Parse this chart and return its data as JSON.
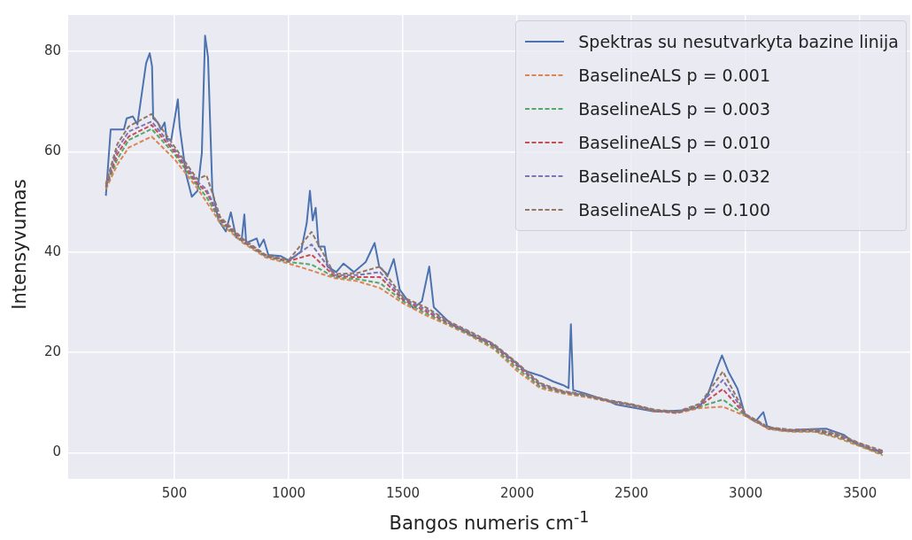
{
  "chart_data": {
    "type": "line",
    "xlabel": "Bangos numeris cm$^{-1}$",
    "ylabel": "Intensyvumas",
    "xlim": [
      35,
      3720
    ],
    "ylim": [
      -5.2,
      87.2
    ],
    "xticks": [
      500,
      1000,
      1500,
      2000,
      2500,
      3000,
      3500
    ],
    "yticks": [
      0,
      20,
      40,
      60,
      80
    ],
    "grid": true,
    "legend": "top right",
    "marker": "none",
    "series": [
      {
        "name": "Spektras su nesutvarkyta bazine linija",
        "color": "#4c72b0",
        "line_style": "solid",
        "x": [
          200,
          221,
          279,
          291,
          318,
          338,
          376,
          392,
          402,
          407,
          427,
          441,
          457,
          466,
          486,
          515,
          523,
          550,
          576,
          601,
          620,
          634,
          647,
          666,
          693,
          725,
          747,
          770,
          794,
          806,
          814,
          860,
          872,
          891,
          911,
          964,
          1002,
          1054,
          1079,
          1093,
          1105,
          1118,
          1131,
          1157,
          1170,
          1208,
          1240,
          1286,
          1337,
          1376,
          1396,
          1434,
          1460,
          1486,
          1545,
          1583,
          1615,
          1635,
          1712,
          1764,
          1816,
          1880,
          1945,
          1983,
          2035,
          2111,
          2158,
          2200,
          2225,
          2235,
          2245,
          2300,
          2400,
          2434,
          2603,
          2745,
          2797,
          2835,
          2874,
          2896,
          2926,
          2964,
          2997,
          3042,
          3077,
          3094,
          3158,
          3287,
          3352,
          3429,
          3481,
          3558,
          3600
        ],
        "values": [
          51.2,
          64.4,
          64.4,
          66.6,
          67,
          65.4,
          77.6,
          79.6,
          77,
          66.6,
          65.8,
          64.4,
          65.8,
          62.6,
          62.3,
          70.4,
          64.9,
          55.7,
          51,
          52.2,
          59.7,
          83.1,
          78.8,
          52.2,
          46.3,
          44.1,
          47.9,
          42.9,
          42.3,
          47.5,
          41.8,
          42.7,
          41,
          42.5,
          39.4,
          39.2,
          38.3,
          40.1,
          45.8,
          52.2,
          46.3,
          48.8,
          41.1,
          41.1,
          37.1,
          36,
          37.7,
          36,
          38,
          41.8,
          37.1,
          35.4,
          38.6,
          32.5,
          28.8,
          30.2,
          37.1,
          29,
          25.6,
          24.4,
          23,
          22.1,
          19.8,
          18.4,
          16.3,
          15.2,
          14.2,
          13.5,
          12.9,
          25.6,
          12.5,
          11.8,
          10.3,
          9.6,
          8.2,
          8.5,
          9.1,
          11.7,
          16.8,
          19.4,
          16,
          12.8,
          7.6,
          6.2,
          8.1,
          5.3,
          4.4,
          4.7,
          4.8,
          3.6,
          1.8,
          0.4,
          0.4
        ]
      },
      {
        "name": "BaselineALS p = 0.001",
        "color": "#dd8452",
        "line_style": "dashed",
        "x": [
          200,
          250,
          300,
          400,
          500,
          600,
          640,
          700,
          800,
          900,
          1000,
          1100,
          1200,
          1300,
          1400,
          1500,
          1600,
          1700,
          1800,
          1900,
          2000,
          2100,
          2200,
          2300,
          2400,
          2500,
          2600,
          2700,
          2800,
          2900,
          3000,
          3100,
          3200,
          3300,
          3400,
          3500,
          3600
        ],
        "values": [
          52.5,
          57.4,
          60.8,
          63,
          58.5,
          52.7,
          50,
          45.8,
          41.8,
          38.9,
          37.7,
          36.3,
          34.8,
          34.2,
          32.8,
          29.8,
          27.4,
          25.4,
          23.2,
          20.6,
          16.3,
          12.9,
          11.8,
          11.1,
          10.2,
          9.4,
          8.3,
          7.9,
          8.9,
          9.2,
          7.3,
          4.7,
          4.2,
          4.2,
          3,
          1.3,
          -0.5
        ]
      },
      {
        "name": "BaselineALS p = 0.003",
        "color": "#55a868",
        "line_style": "dashed",
        "x": [
          200,
          250,
          300,
          400,
          500,
          600,
          640,
          700,
          800,
          900,
          1000,
          1100,
          1200,
          1300,
          1400,
          1500,
          1600,
          1700,
          1800,
          1900,
          2000,
          2100,
          2200,
          2300,
          2400,
          2500,
          2600,
          2700,
          2800,
          2900,
          3000,
          3100,
          3200,
          3300,
          3400,
          3500,
          3600
        ],
        "values": [
          52.8,
          58.5,
          62.3,
          64.5,
          59.5,
          53.2,
          51,
          46.2,
          42,
          39.1,
          38,
          37.5,
          35,
          34.6,
          33.8,
          30.2,
          27.8,
          25.6,
          23.4,
          20.9,
          16.8,
          13.2,
          12,
          11.3,
          10.3,
          9.5,
          8.4,
          8,
          9.2,
          10.6,
          7.4,
          4.8,
          4.3,
          4.3,
          3.2,
          1.5,
          -0.3
        ]
      },
      {
        "name": "BaselineALS p = 0.010",
        "color": "#c44e52",
        "line_style": "dashed",
        "x": [
          200,
          250,
          300,
          400,
          500,
          600,
          640,
          700,
          800,
          900,
          1000,
          1100,
          1200,
          1300,
          1400,
          1500,
          1600,
          1700,
          1800,
          1900,
          2000,
          2100,
          2200,
          2300,
          2400,
          2500,
          2600,
          2700,
          2800,
          2900,
          3000,
          3100,
          3200,
          3300,
          3400,
          3500,
          3600
        ],
        "values": [
          53,
          59.5,
          63,
          65.3,
          60,
          53.6,
          52,
          46.5,
          42.2,
          39.2,
          38.2,
          39.5,
          35.2,
          35,
          35,
          30.5,
          28.2,
          25.8,
          23.6,
          21.2,
          17.3,
          13.5,
          12.1,
          11.4,
          10.3,
          9.5,
          8.4,
          8,
          9.4,
          12.7,
          7.5,
          4.9,
          4.4,
          4.5,
          3.5,
          1.7,
          -0.1
        ]
      },
      {
        "name": "BaselineALS p = 0.032",
        "color": "#8172b3",
        "line_style": "dashed",
        "x": [
          200,
          250,
          300,
          400,
          500,
          600,
          640,
          700,
          800,
          900,
          1000,
          1100,
          1200,
          1300,
          1400,
          1500,
          1600,
          1700,
          1800,
          1900,
          2000,
          2100,
          2200,
          2300,
          2400,
          2500,
          2600,
          2700,
          2800,
          2900,
          3000,
          3100,
          3200,
          3300,
          3400,
          3500,
          3600
        ],
        "values": [
          53.2,
          60.5,
          64,
          66,
          60.5,
          54,
          52.5,
          46.8,
          42.4,
          39.3,
          38.3,
          41.5,
          35.4,
          35.4,
          36,
          30.8,
          28.6,
          26,
          23.8,
          21.4,
          17.6,
          13.7,
          12.2,
          11.5,
          10.4,
          9.6,
          8.5,
          8.1,
          9.6,
          14.5,
          7.6,
          5,
          4.5,
          4.6,
          3.7,
          1.8,
          0.1
        ]
      },
      {
        "name": "BaselineALS p = 0.100",
        "color": "#937860",
        "line_style": "dashed",
        "x": [
          200,
          250,
          300,
          400,
          500,
          600,
          640,
          700,
          800,
          900,
          1000,
          1100,
          1200,
          1300,
          1400,
          1500,
          1600,
          1700,
          1800,
          1900,
          2000,
          2100,
          2200,
          2300,
          2400,
          2500,
          2600,
          2700,
          2800,
          2900,
          3000,
          3100,
          3200,
          3300,
          3400,
          3500,
          3600
        ],
        "values": [
          53.5,
          61.5,
          65,
          67.5,
          61,
          54.5,
          55.3,
          47,
          42.6,
          39.4,
          38.4,
          44,
          35.6,
          35.8,
          37.1,
          31,
          29,
          26.2,
          24,
          21.6,
          17.9,
          13.9,
          12.3,
          11.6,
          10.5,
          9.7,
          8.6,
          8.2,
          9.8,
          16.2,
          7.7,
          5.1,
          4.6,
          4.7,
          3.9,
          1.9,
          0.4
        ]
      }
    ]
  }
}
